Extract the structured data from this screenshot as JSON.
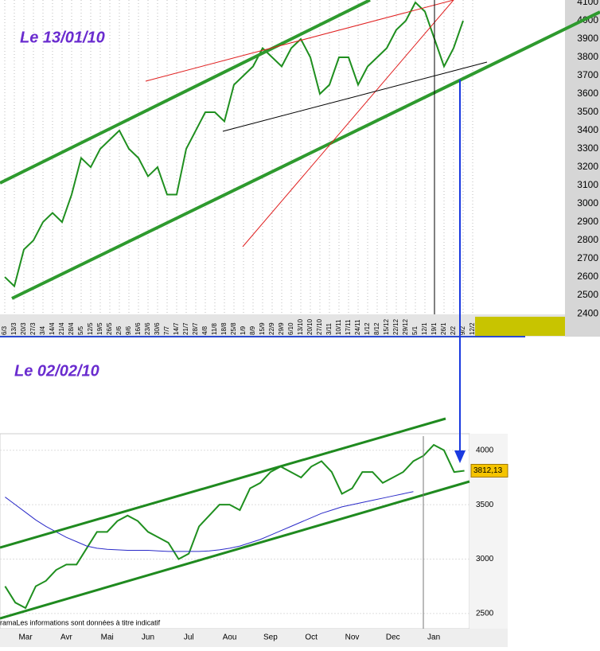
{
  "chart_data": [
    {
      "type": "line",
      "title": "Le 13/01/10",
      "categories": [
        "6/3",
        "13/3",
        "20/3",
        "27/3",
        "3/4",
        "14/4",
        "21/4",
        "28/4",
        "5/5",
        "12/5",
        "19/5",
        "26/5",
        "2/6",
        "9/6",
        "16/6",
        "23/6",
        "30/6",
        "7/7",
        "14/7",
        "21/7",
        "28/7",
        "4/8",
        "11/8",
        "18/8",
        "25/8",
        "1/9",
        "8/9",
        "15/9",
        "22/9",
        "29/9",
        "6/10",
        "13/10",
        "20/10",
        "27/10",
        "3/11",
        "10/11",
        "17/11",
        "24/11",
        "1/12",
        "8/12",
        "15/12",
        "22/12",
        "29/12",
        "5/1",
        "12/1",
        "19/1",
        "26/1",
        "2/2",
        "9/2",
        "12/2"
      ],
      "series": [
        {
          "color": "#1f8f1f",
          "values": [
            2600,
            2550,
            2750,
            2800,
            2900,
            2950,
            2900,
            3050,
            3250,
            3200,
            3300,
            3350,
            3400,
            3300,
            3250,
            3150,
            3200,
            3050,
            3050,
            3300,
            3400,
            3500,
            3500,
            3450,
            3650,
            3700,
            3750,
            3850,
            3800,
            3750,
            3850,
            3900,
            3800,
            3600,
            3650,
            3800,
            3800,
            3650,
            3750,
            3800,
            3850,
            3950,
            4000,
            4100,
            4050,
            3900,
            3750,
            3850,
            4000,
            null
          ]
        }
      ],
      "ylim": [
        2396,
        4113
      ],
      "yticks": [
        2400,
        2500,
        2600,
        2700,
        2800,
        2900,
        3000,
        3100,
        3200,
        3300,
        3400,
        3500,
        3600,
        3700,
        3800,
        3900,
        4000,
        4100
      ],
      "x_grid": true
    },
    {
      "type": "line",
      "title": "Le 02/02/10",
      "categories": [
        null,
        null,
        "Mar",
        null,
        null,
        null,
        "Avr",
        null,
        null,
        null,
        "Mai",
        null,
        null,
        null,
        "Jun",
        null,
        null,
        null,
        "Jul",
        null,
        null,
        null,
        "Aou",
        null,
        null,
        null,
        "Sep",
        null,
        null,
        null,
        "Oct",
        null,
        null,
        null,
        "Nov",
        null,
        null,
        null,
        "Dec",
        null,
        null,
        null,
        "Jan",
        null,
        null,
        null
      ],
      "series": [
        {
          "color": "#1f8f1f",
          "values": [
            2750,
            2600,
            2550,
            2750,
            2800,
            2900,
            2950,
            2950,
            3100,
            3250,
            3250,
            3350,
            3400,
            3350,
            3250,
            3200,
            3150,
            3000,
            3050,
            3300,
            3400,
            3500,
            3500,
            3450,
            3650,
            3700,
            3800,
            3850,
            3800,
            3750,
            3850,
            3900,
            3800,
            3600,
            3650,
            3800,
            3800,
            3700,
            3750,
            3800,
            3900,
            3950,
            4050,
            4000,
            3800,
            3812.13
          ],
          "value_labels": [
            null,
            null,
            null,
            null,
            null,
            null,
            null,
            null,
            null,
            null,
            null,
            null,
            null,
            null,
            null,
            null,
            null,
            null,
            null,
            null,
            null,
            null,
            null,
            null,
            null,
            null,
            null,
            null,
            null,
            null,
            null,
            null,
            null,
            null,
            null,
            null,
            null,
            null,
            null,
            null,
            null,
            null,
            null,
            null,
            null,
            "3812,13"
          ]
        },
        {
          "color": "#2a2ac8",
          "values": [
            3570,
            3500,
            3430,
            3360,
            3300,
            3250,
            3200,
            3160,
            3120,
            3100,
            3090,
            3085,
            3080,
            3080,
            3080,
            3075,
            3070,
            3070,
            3070,
            3070,
            3075,
            3085,
            3100,
            3120,
            3150,
            3180,
            3220,
            3260,
            3300,
            3340,
            3380,
            3420,
            3450,
            3480,
            3500,
            3520,
            3540,
            3560,
            3580,
            3600,
            3620,
            null,
            null,
            null,
            null,
            null
          ]
        }
      ],
      "ylim": [
        2360,
        4130
      ],
      "yticks": [
        2500,
        3000,
        3500,
        4000
      ],
      "grid": true,
      "note": "ramaLes informations sont données à titre indicatif"
    }
  ]
}
